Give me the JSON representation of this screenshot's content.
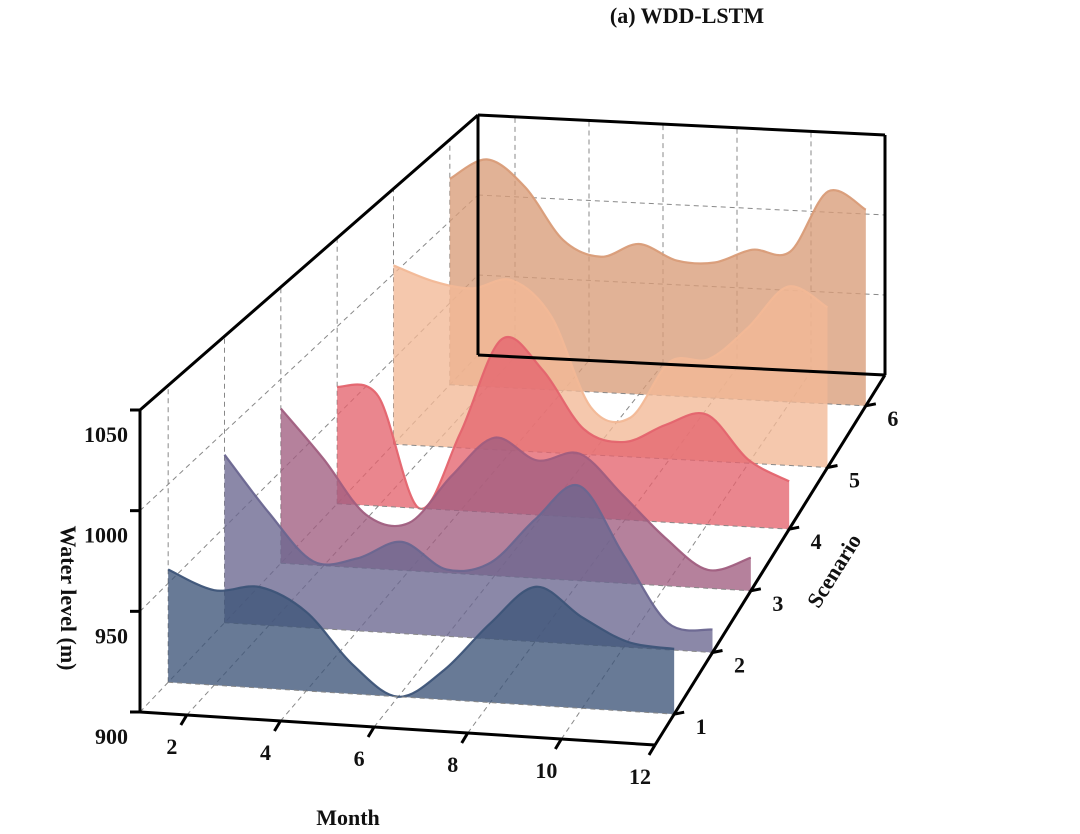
{
  "chart_data": {
    "type": "ridge3d",
    "title": "(a) WDD-LSTM",
    "xlabel": "Month",
    "ylabel": "Water level (m)",
    "zlabel": "Scenario",
    "x": [
      1,
      2,
      3,
      4,
      5,
      6,
      7,
      8,
      9,
      10,
      11,
      12
    ],
    "xlim": [
      1,
      12
    ],
    "xticks": [
      2,
      4,
      6,
      8,
      10,
      12
    ],
    "ylim": [
      900,
      1050
    ],
    "yticks": [
      900,
      950,
      1000,
      1050
    ],
    "zlim": [
      0.5,
      6.5
    ],
    "zticks": [
      1,
      2,
      3,
      4,
      5,
      6
    ],
    "grid": true,
    "series": [
      {
        "z": 1,
        "color": "#3d5478",
        "values": [
          957,
          948,
          951,
          940,
          915,
          900,
          915,
          940,
          960,
          946,
          935,
          933
        ]
      },
      {
        "z": 2,
        "color": "#6a6690",
        "values": [
          988,
          959,
          935,
          938,
          948,
          935,
          940,
          964,
          983,
          948,
          914,
          912
        ]
      },
      {
        "z": 3,
        "color": "#a05e80",
        "values": [
          984,
          958,
          929,
          926,
          953,
          975,
          964,
          969,
          948,
          926,
          910,
          918
        ]
      },
      {
        "z": 4,
        "color": "#e4646e",
        "values": [
          966,
          962,
          900,
          944,
          998,
          982,
          950,
          944,
          955,
          962,
          938,
          927
        ]
      },
      {
        "z": 5,
        "color": "#f2b896",
        "values": [
          1005,
          997,
          994,
          1000,
          980,
          928,
          923,
          957,
          960,
          980,
          1005,
          994
        ]
      },
      {
        "z": 6,
        "color": "#d99c78",
        "values": [
          1026,
          1039,
          1023,
          992,
          983,
          992,
          983,
          983,
          992,
          992,
          1030,
          1020
        ]
      }
    ]
  }
}
